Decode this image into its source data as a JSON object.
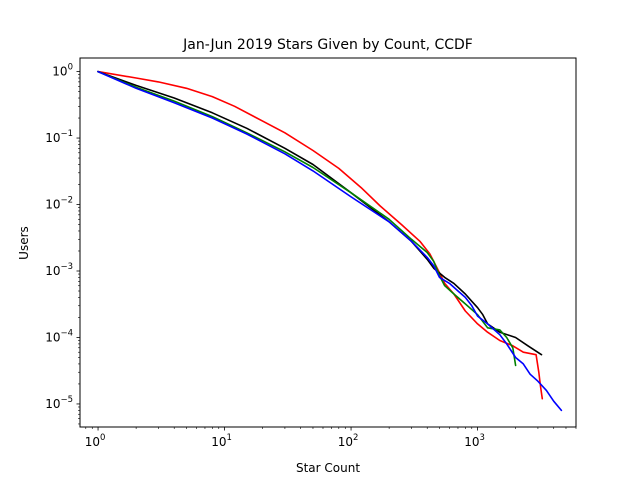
{
  "chart_data": {
    "type": "line",
    "title": "Jan-Jun 2019 Stars Given by Count, CCDF",
    "xlabel": "Star Count",
    "ylabel": "Users",
    "xscale": "log",
    "yscale": "log",
    "xlim": [
      0.72,
      6000
    ],
    "ylim": [
      4.5e-06,
      1.6
    ],
    "grid": false,
    "x_ticks": [
      {
        "value": 1,
        "base": "10",
        "exp": "0"
      },
      {
        "value": 10,
        "base": "10",
        "exp": "1"
      },
      {
        "value": 100,
        "base": "10",
        "exp": "2"
      },
      {
        "value": 1000,
        "base": "10",
        "exp": "3"
      }
    ],
    "y_ticks": [
      {
        "value": 1,
        "base": "10",
        "exp": "0"
      },
      {
        "value": 0.1,
        "base": "10",
        "exp": "−1"
      },
      {
        "value": 0.01,
        "base": "10",
        "exp": "−2"
      },
      {
        "value": 0.001,
        "base": "10",
        "exp": "−3"
      },
      {
        "value": 0.0001,
        "base": "10",
        "exp": "−4"
      },
      {
        "value": 1e-05,
        "base": "10",
        "exp": "−5"
      }
    ],
    "series": [
      {
        "color": "#ff0000",
        "x": [
          1,
          2,
          3,
          5,
          8,
          12,
          20,
          30,
          50,
          80,
          120,
          170,
          250,
          350,
          420,
          480,
          550,
          650,
          800,
          1000,
          1200,
          1500,
          1900,
          2300,
          2900,
          3050,
          3150,
          3250
        ],
        "y": [
          1,
          0.8,
          0.7,
          0.56,
          0.42,
          0.3,
          0.18,
          0.12,
          0.065,
          0.035,
          0.018,
          0.0095,
          0.005,
          0.0028,
          0.0018,
          0.0011,
          0.00065,
          0.00045,
          0.00025,
          0.00016,
          0.00012,
          9e-05,
          7.5e-05,
          6e-05,
          5.5e-05,
          3e-05,
          1.8e-05,
          1.2e-05
        ]
      },
      {
        "color": "#000000",
        "x": [
          1,
          2,
          4,
          8,
          15,
          30,
          50,
          100,
          200,
          300,
          400,
          450,
          550,
          650,
          800,
          900,
          1000,
          1100,
          1200,
          1500,
          2000,
          2500,
          3200
        ],
        "y": [
          1,
          0.62,
          0.4,
          0.24,
          0.14,
          0.07,
          0.04,
          0.015,
          0.0055,
          0.0028,
          0.0015,
          0.0011,
          0.0008,
          0.00065,
          0.00045,
          0.00035,
          0.00028,
          0.00022,
          0.00016,
          0.00012,
          0.0001,
          7.5e-05,
          5.5e-05
        ]
      },
      {
        "color": "#008000",
        "x": [
          1,
          2,
          4,
          8,
          15,
          30,
          50,
          100,
          200,
          300,
          400,
          450,
          500,
          550,
          650,
          800,
          1000,
          1200,
          1500,
          1700,
          1900,
          2000
        ],
        "y": [
          1,
          0.58,
          0.36,
          0.21,
          0.12,
          0.062,
          0.036,
          0.015,
          0.006,
          0.003,
          0.0019,
          0.0014,
          0.00085,
          0.0006,
          0.00045,
          0.00032,
          0.00022,
          0.00014,
          0.00013,
          0.0001,
          7e-05,
          3.8e-05
        ]
      },
      {
        "color": "#0000ff",
        "x": [
          1,
          2,
          4,
          8,
          15,
          30,
          50,
          100,
          200,
          300,
          400,
          450,
          500,
          600,
          700,
          800,
          900,
          1000,
          1200,
          1500,
          1700,
          2000,
          2300,
          2600,
          3000,
          3500,
          4000,
          4600
        ],
        "y": [
          1,
          0.56,
          0.34,
          0.2,
          0.115,
          0.058,
          0.032,
          0.013,
          0.0055,
          0.0028,
          0.0016,
          0.0012,
          0.0008,
          0.00065,
          0.0005,
          0.0004,
          0.0003,
          0.00021,
          0.00016,
          0.00011,
          8e-05,
          5e-05,
          4e-05,
          2.8e-05,
          2.2e-05,
          1.6e-05,
          1.1e-05,
          8e-06
        ]
      }
    ]
  }
}
